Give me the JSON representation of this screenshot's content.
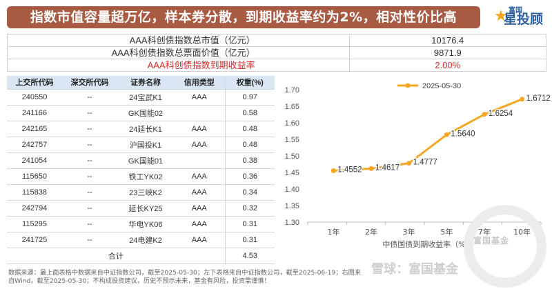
{
  "header": {
    "title": "指数市值容量超万亿，样本券分散，到期收益率约为2%，相对性价比高",
    "logo_small": "富国",
    "logo_big": "星投顾"
  },
  "summary": [
    {
      "label": "AAA科创债指数总市值（亿元）",
      "value": "10176.4",
      "highlight": false
    },
    {
      "label": "AAA科创债指数总票面价值（亿元）",
      "value": "9871.9",
      "highlight": false
    },
    {
      "label": "AAA科创债指数到期收益率",
      "value": "2.00%",
      "highlight": true
    }
  ],
  "holdings": {
    "headers": [
      "上交所代码",
      "深交所代码",
      "证券名称",
      "信用类型",
      "权重(%)"
    ],
    "rows": [
      [
        "240550",
        "--",
        "24宝武K1",
        "AAA",
        "0.97"
      ],
      [
        "241166",
        "--",
        "GK国能02",
        "",
        "0.58"
      ],
      [
        "242165",
        "--",
        "24延长K1",
        "AAA",
        "0.48"
      ],
      [
        "242757",
        "--",
        "沪国投K1",
        "AAA",
        "0.48"
      ],
      [
        "241054",
        "--",
        "GK国能01",
        "",
        "0.38"
      ],
      [
        "115650",
        "--",
        "铁工YK02",
        "AAA",
        "0.36"
      ],
      [
        "115838",
        "--",
        "23三峡K2",
        "AAA",
        "0.34"
      ],
      [
        "242794",
        "--",
        "延长KY25",
        "AAA",
        "0.32"
      ],
      [
        "115295",
        "--",
        "华电YK06",
        "AAA",
        "0.31"
      ],
      [
        "241725",
        "--",
        "24电建K2",
        "AAA",
        "0.31"
      ]
    ],
    "total_label": "合计",
    "total_value": "4.53"
  },
  "chart_data": {
    "type": "line",
    "categories": [
      "1年",
      "2年",
      "3年",
      "5年",
      "7年",
      "10年"
    ],
    "series": [
      {
        "name": "2025-05-30",
        "values": [
          1.4552,
          1.4617,
          1.4777,
          1.564,
          1.6254,
          1.6712
        ],
        "color": "#f5a623"
      }
    ],
    "data_labels": [
      "1.4552",
      "1.4617",
      "1.4777",
      "1.5640",
      "1.6254",
      "1.6712"
    ],
    "xlabel": "中债国债到期收益率（%）",
    "ylabel": "",
    "ylim": [
      1.3,
      1.7
    ],
    "yticks": [
      "1.70",
      "1.65",
      "1.60",
      "1.55",
      "1.50",
      "1.45",
      "1.40",
      "1.35",
      "1.30"
    ],
    "grid": false,
    "legend": "top"
  },
  "footnote": "数据来源：最上面表格中数据来自中证指数公司，截至2025-05-30；左下表格来自中证指数公司，截至2025-06-19；右图来自Wind，截至2025-05-30；不构成投资建议，历史不预示未来，基金有风险，投资需谨慎！",
  "watermark": {
    "brand": "富国基金",
    "caption": "雪球：富国基金"
  },
  "colors": {
    "title_bg": "#a85a43",
    "accent_red": "#d12b2b",
    "table_header_bg": "#dbe6f4",
    "line": "#f5a623",
    "logo_blue": "#2e5f9e"
  }
}
